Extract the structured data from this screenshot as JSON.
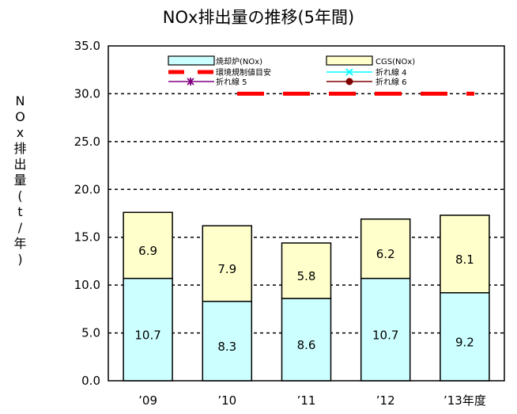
{
  "chart_data": {
    "type": "bar",
    "title": "NOx排出量の推移(5年間)",
    "xlabel": "",
    "ylabel": "NOx排出量(t/年)",
    "categories": [
      "’09",
      "’10",
      "’11",
      "’12",
      "’13年度"
    ],
    "stacked": true,
    "ylim": [
      0,
      35
    ],
    "yticks": [
      "0.0",
      "5.0",
      "10.0",
      "15.0",
      "20.0",
      "25.0",
      "30.0",
      "35.0"
    ],
    "grid": true,
    "legend_position": "top",
    "series": [
      {
        "name": "焼却炉(NOx)",
        "values": [
          10.7,
          8.3,
          8.6,
          10.7,
          9.2
        ],
        "labels": [
          "10.7",
          "8.3",
          "8.6",
          "10.7",
          "9.2"
        ],
        "color": "#ccffff"
      },
      {
        "name": "CGS(NOx)",
        "values": [
          6.9,
          7.9,
          5.8,
          6.2,
          8.1
        ],
        "labels": [
          "6.9",
          "7.9",
          "5.8",
          "6.2",
          "8.1"
        ],
        "color": "#ffffcc"
      }
    ],
    "reference_line": {
      "name": "環境規制値目安",
      "value": 30,
      "color": "#ff0000"
    },
    "extra_legend": [
      {
        "name": "折れ線 4",
        "color": "#00ffff",
        "marker": "x"
      },
      {
        "name": "折れ線 5",
        "color": "#800080",
        "marker": "star"
      },
      {
        "name": "折れ線 6",
        "color": "#800000",
        "marker": "circle"
      }
    ]
  }
}
